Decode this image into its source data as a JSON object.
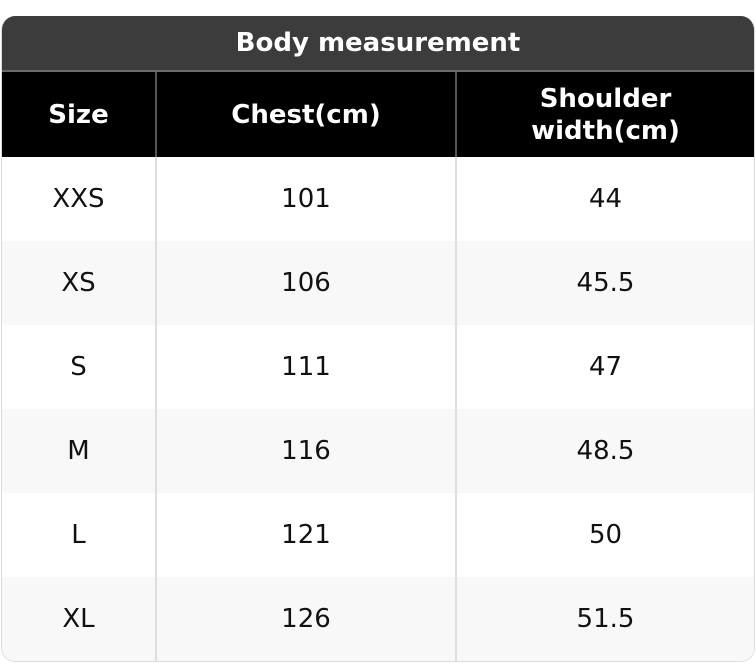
{
  "title": "Body measurement",
  "headers": [
    "Size",
    "Chest(cm)",
    "Shoulder width(cm)"
  ],
  "rows": [
    [
      "XXS",
      "101",
      "44"
    ],
    [
      "XS",
      "106",
      "45.5"
    ],
    [
      "S",
      "111",
      "47"
    ],
    [
      "M",
      "116",
      "48.5"
    ],
    [
      "L",
      "121",
      "50"
    ],
    [
      "XL",
      "126",
      "51.5"
    ]
  ],
  "colors": {
    "title_bg": "#3c3c3c",
    "header_bg": "#000000",
    "alt_row_bg": "#f8f8f8"
  }
}
